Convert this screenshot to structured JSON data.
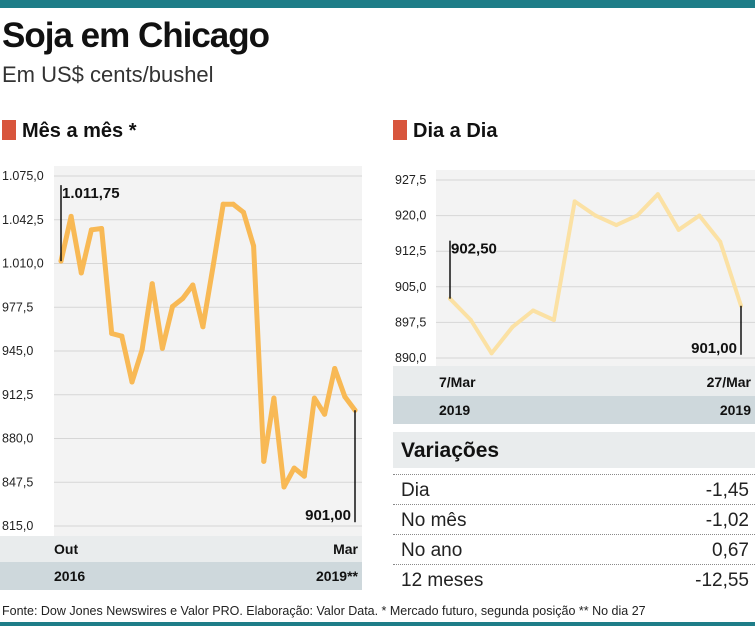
{
  "title": "Soja em Chicago",
  "subtitle": "Em US$ cents/bushel",
  "chart_data": [
    {
      "type": "line",
      "title": "Mês a mês *",
      "x_start_label": "Out",
      "x_end_label": "Mar",
      "x_start_year": "2016",
      "x_end_year": "2019**",
      "ylim": [
        815,
        1075
      ],
      "y_ticks": [
        1075,
        1042.5,
        1010,
        977.5,
        945,
        912.5,
        880,
        847.5,
        815
      ],
      "y_tick_labels": [
        "1.075,0",
        "1.042,5",
        "1.010,0",
        "977,5",
        "945,0",
        "912,5",
        "880,0",
        "847,5",
        "815,0"
      ],
      "values": [
        1011.75,
        1045,
        1003,
        1035,
        1036,
        958,
        956,
        922,
        946,
        995,
        947,
        978,
        984,
        994,
        963,
        1008,
        1054,
        1054,
        1048,
        1023,
        863,
        910,
        844,
        858,
        852,
        910,
        898,
        932,
        911,
        901
      ],
      "start_label": "1.011,75",
      "end_label": "901,00",
      "color": "#f8b955"
    },
    {
      "type": "line",
      "title": "Dia a Dia",
      "x_start_label": "7/Mar",
      "x_end_label": "27/Mar",
      "x_start_year": "2019",
      "x_end_year": "2019",
      "ylim": [
        890,
        927.5
      ],
      "y_ticks": [
        927.5,
        920,
        912.5,
        905,
        897.5,
        890
      ],
      "y_tick_labels": [
        "927,5",
        "920,0",
        "912,5",
        "905,0",
        "897,5",
        "890,0"
      ],
      "values": [
        902.5,
        898,
        891,
        896.5,
        900,
        898,
        923,
        920,
        918,
        920,
        924.5,
        917,
        920,
        914.5,
        901
      ],
      "start_label": "902,50",
      "end_label": "901,00",
      "color": "#fbe1a4"
    }
  ],
  "variacoes": {
    "title": "Variações",
    "rows": [
      {
        "label": "Dia",
        "value": "-1,45"
      },
      {
        "label": "No mês",
        "value": "-1,02"
      },
      {
        "label": "No ano",
        "value": "0,67"
      },
      {
        "label": "12 meses",
        "value": "-12,55"
      }
    ]
  },
  "source": "Fonte: Dow Jones Newswires e Valor PRO. Elaboração: Valor Data. * Mercado futuro, segunda posição ** No dia 27"
}
